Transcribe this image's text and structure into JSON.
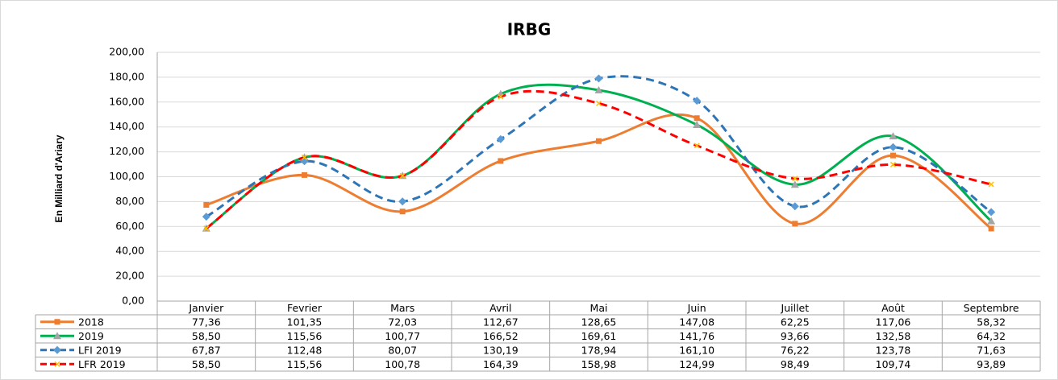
{
  "chart_data": {
    "type": "line",
    "title": "IRBG",
    "y_label": "En Milliard d'Ariary",
    "categories": [
      "Janvier",
      "Fevrier",
      "Mars",
      "Avril",
      "Mai",
      "Juin",
      "Juillet",
      "Août",
      "Septembre"
    ],
    "series": [
      {
        "name": "2018",
        "color": "#ed7d31",
        "marker": "square",
        "dashed": false,
        "values": [
          77.36,
          101.35,
          72.03,
          112.67,
          128.65,
          147.08,
          62.25,
          117.06,
          58.32
        ],
        "value_labels": [
          "77,36",
          "101,35",
          "72,03",
          "112,67",
          "128,65",
          "147,08",
          "62,25",
          "117,06",
          "58,32"
        ]
      },
      {
        "name": "2019",
        "color": "#00b050",
        "marker": "triangle",
        "dashed": false,
        "values": [
          58.5,
          115.56,
          100.77,
          166.52,
          169.61,
          141.76,
          93.66,
          132.58,
          64.32
        ],
        "value_labels": [
          "58,50",
          "115,56",
          "100,77",
          "166,52",
          "169,61",
          "141,76",
          "93,66",
          "132,58",
          "64,32"
        ]
      },
      {
        "name": "LFI 2019",
        "color": "#2e75b6",
        "marker": "diamond",
        "dashed": true,
        "values": [
          67.87,
          112.48,
          80.07,
          130.19,
          178.94,
          161.1,
          76.22,
          123.78,
          71.63
        ],
        "value_labels": [
          "67,87",
          "112,48",
          "80,07",
          "130,19",
          "178,94",
          "161,10",
          "76,22",
          "123,78",
          "71,63"
        ]
      },
      {
        "name": "LFR 2019",
        "color": "#ff0000",
        "marker": "x",
        "dashed": true,
        "values": [
          58.5,
          115.56,
          100.78,
          164.39,
          158.98,
          124.99,
          98.49,
          109.74,
          93.89
        ],
        "value_labels": [
          "58,50",
          "115,56",
          "100,78",
          "164,39",
          "158,98",
          "124,99",
          "98,49",
          "109,74",
          "93,89"
        ]
      }
    ],
    "ylim": [
      0,
      200
    ],
    "yticks": [
      {
        "value": 0,
        "label": "0,00"
      },
      {
        "value": 20,
        "label": "20,00"
      },
      {
        "value": 40,
        "label": "40,00"
      },
      {
        "value": 60,
        "label": "60,00"
      },
      {
        "value": 80,
        "label": "80,00"
      },
      {
        "value": 100,
        "label": "100,00"
      },
      {
        "value": 120,
        "label": "120,00"
      },
      {
        "value": 140,
        "label": "140,00"
      },
      {
        "value": 160,
        "label": "160,00"
      },
      {
        "value": 180,
        "label": "180,00"
      },
      {
        "value": 200,
        "label": "200,00"
      }
    ],
    "grid": true
  }
}
